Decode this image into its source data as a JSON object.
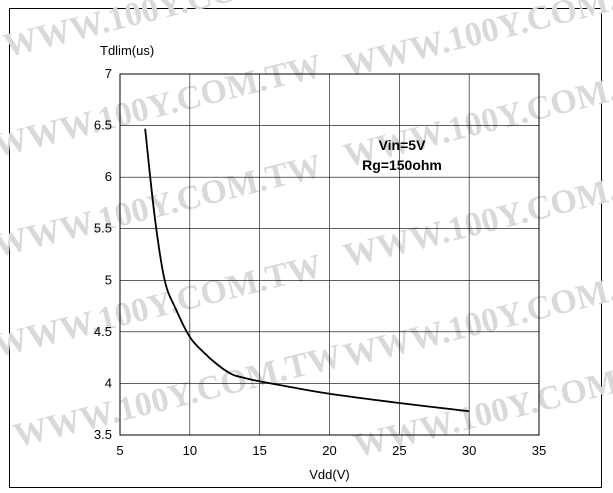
{
  "watermark": "WWW.100Y.COM.TW",
  "chart_data": {
    "type": "line",
    "title": "",
    "ylabel": "Tdlim(us)",
    "xlabel": "Vdd(V)",
    "xlim": [
      5,
      35
    ],
    "ylim": [
      3.5,
      7
    ],
    "x_ticks": [
      "5",
      "10",
      "15",
      "20",
      "25",
      "30",
      "35"
    ],
    "y_ticks": [
      "3.5",
      "4",
      "4.5",
      "5",
      "5.5",
      "6",
      "6.5",
      "7"
    ],
    "grid": true,
    "annotations": [
      "Vin=5V",
      "Rg=150ohm"
    ],
    "series": [
      {
        "x": [
          6.8,
          7.5,
          8.2,
          9.0,
          10.0,
          11.0,
          12.0,
          13.0,
          14.0,
          15.0,
          17.0,
          20.0,
          25.0,
          30.0
        ],
        "values": [
          6.47,
          5.6,
          5.0,
          4.72,
          4.45,
          4.3,
          4.18,
          4.09,
          4.05,
          4.02,
          3.97,
          3.9,
          3.81,
          3.73
        ]
      }
    ]
  }
}
